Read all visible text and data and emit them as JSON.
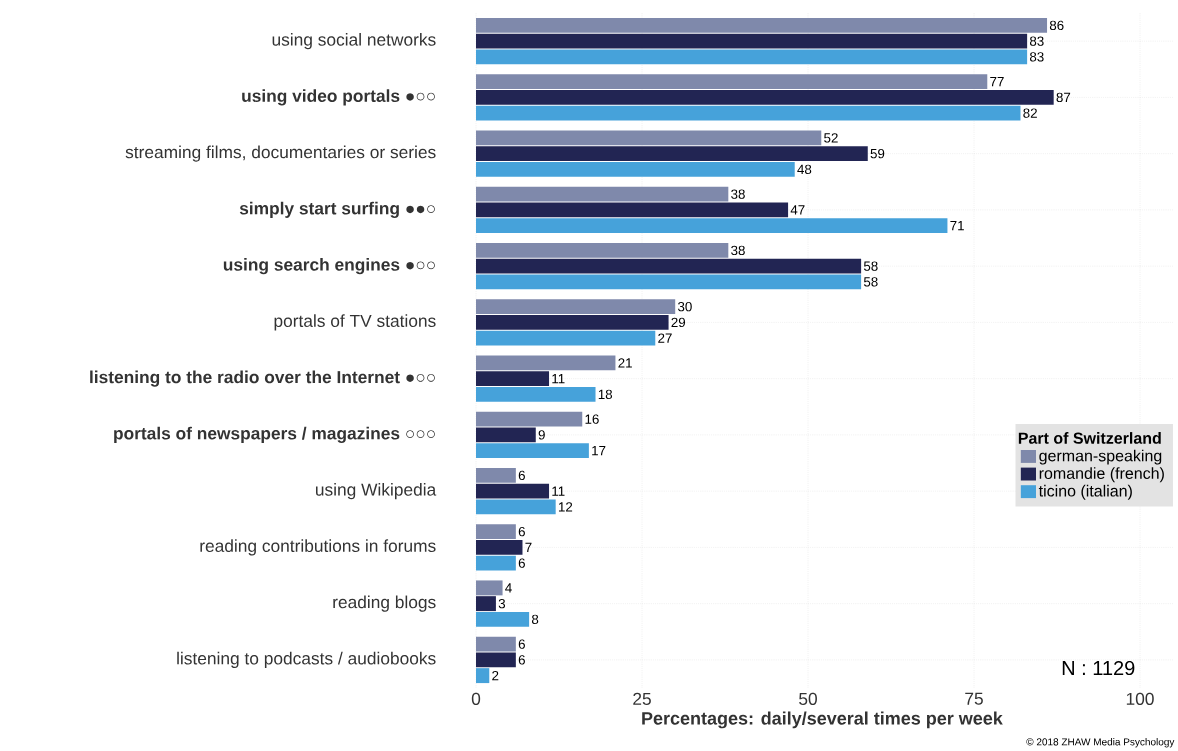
{
  "chart_data": {
    "type": "bar",
    "orientation": "horizontal",
    "xlabel": "Percentages: daily/several times per week",
    "legend_title": "Part of Switzerland",
    "categories": [
      "using social networks",
      "**using video portals** ●○○",
      "streaming films, documentaries or series",
      "**simply start surfing** ●●○",
      "**using search engines** ●○○",
      "portals of TV stations",
      "**listening to the radio over the Internet** ●○○",
      "**portals of newspapers / magazines** ○○○",
      "using Wikipedia",
      "reading contributions in forums",
      "reading blogs",
      "listening to podcasts / audiobooks"
    ],
    "series": [
      {
        "name": "german-speaking",
        "color": "#7f89ab",
        "values": [
          86,
          77,
          52,
          38,
          38,
          30,
          21,
          16,
          6,
          6,
          4,
          6
        ]
      },
      {
        "name": "romandie (french)",
        "color": "#222553",
        "values": [
          83,
          87,
          59,
          47,
          58,
          29,
          11,
          9,
          11,
          7,
          3,
          6
        ]
      },
      {
        "name": "ticino (italian)",
        "color": "#46a2da",
        "values": [
          83,
          82,
          48,
          71,
          58,
          27,
          18,
          17,
          12,
          6,
          8,
          2
        ]
      }
    ],
    "xlim": [
      0,
      105
    ],
    "xticks": [
      0,
      25,
      50,
      75,
      100
    ],
    "grid": true,
    "legend": "right",
    "data_labels": true,
    "annotations": [
      "N : 1129",
      "© 2018 ZHAW Media Psychology"
    ]
  }
}
